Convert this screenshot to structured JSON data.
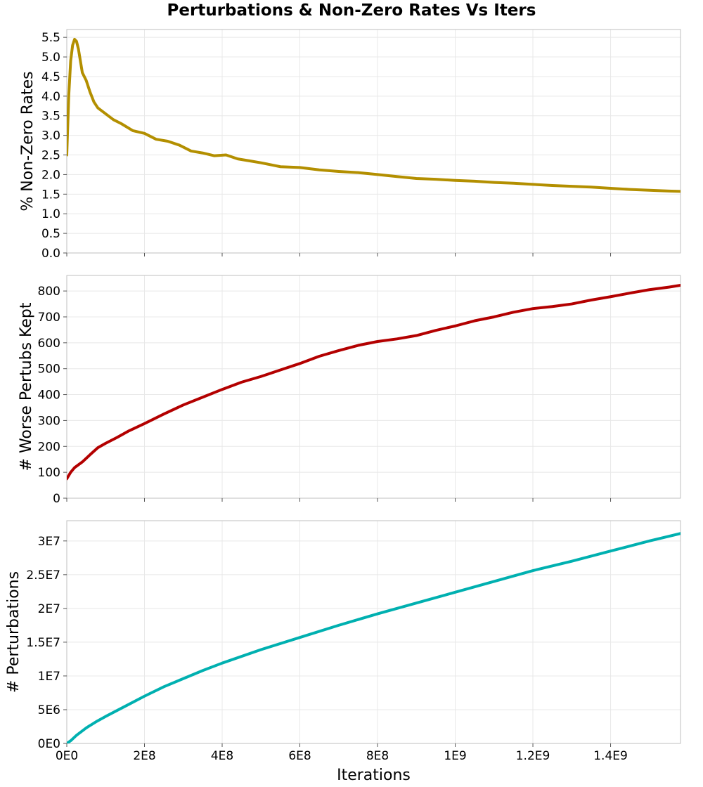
{
  "title": "Perturbations & Non-Zero Rates Vs Iters",
  "chart_data": [
    {
      "type": "line",
      "title": "Perturbations & Non-Zero Rates Vs Iters",
      "xlabel": "",
      "ylabel": "% Non-Zero Rates",
      "xlim": [
        0,
        1580000000
      ],
      "ylim": [
        0,
        5.7
      ],
      "yticks": [
        0,
        0.5,
        1,
        1.5,
        2,
        2.5,
        3,
        3.5,
        4,
        4.5,
        5,
        5.5
      ],
      "ytick_labels": [
        "0.0",
        "0.5",
        "1.0",
        "1.5",
        "2.0",
        "2.5",
        "3.0",
        "3.5",
        "4.0",
        "4.5",
        "5.0",
        "5.5"
      ],
      "grid": true,
      "series": [
        {
          "color": "#b38f00",
          "x": [
            0,
            5000000,
            10000000,
            15000000,
            20000000,
            25000000,
            30000000,
            35000000,
            40000000,
            50000000,
            60000000,
            70000000,
            80000000,
            100000000,
            120000000,
            140000000,
            170000000,
            200000000,
            230000000,
            260000000,
            290000000,
            320000000,
            350000000,
            380000000,
            410000000,
            440000000,
            470000000,
            500000000,
            550000000,
            600000000,
            650000000,
            700000000,
            750000000,
            800000000,
            850000000,
            900000000,
            950000000,
            1000000000,
            1050000000,
            1100000000,
            1150000000,
            1200000000,
            1250000000,
            1300000000,
            1350000000,
            1400000000,
            1450000000,
            1500000000,
            1550000000,
            1580000000
          ],
          "y": [
            2.5,
            4.0,
            4.9,
            5.3,
            5.45,
            5.4,
            5.2,
            4.9,
            4.6,
            4.4,
            4.1,
            3.85,
            3.7,
            3.55,
            3.4,
            3.3,
            3.12,
            3.05,
            2.9,
            2.85,
            2.75,
            2.6,
            2.55,
            2.48,
            2.5,
            2.4,
            2.35,
            2.3,
            2.2,
            2.18,
            2.12,
            2.08,
            2.05,
            2.0,
            1.95,
            1.9,
            1.88,
            1.85,
            1.83,
            1.8,
            1.78,
            1.75,
            1.72,
            1.7,
            1.68,
            1.65,
            1.62,
            1.6,
            1.58,
            1.57
          ]
        }
      ]
    },
    {
      "type": "line",
      "xlabel": "",
      "ylabel": "# Worse Pertubs Kept",
      "xlim": [
        0,
        1580000000
      ],
      "ylim": [
        0,
        860
      ],
      "yticks": [
        0,
        100,
        200,
        300,
        400,
        500,
        600,
        700,
        800
      ],
      "ytick_labels": [
        "0",
        "100",
        "200",
        "300",
        "400",
        "500",
        "600",
        "700",
        "800"
      ],
      "grid": true,
      "series": [
        {
          "color": "#b30000",
          "x": [
            0,
            10000000,
            20000000,
            40000000,
            60000000,
            80000000,
            100000000,
            130000000,
            160000000,
            200000000,
            250000000,
            300000000,
            350000000,
            400000000,
            450000000,
            500000000,
            550000000,
            600000000,
            650000000,
            700000000,
            750000000,
            800000000,
            850000000,
            900000000,
            950000000,
            1000000000,
            1050000000,
            1100000000,
            1150000000,
            1200000000,
            1250000000,
            1300000000,
            1350000000,
            1400000000,
            1450000000,
            1500000000,
            1550000000,
            1580000000
          ],
          "y": [
            75,
            100,
            118,
            140,
            168,
            195,
            212,
            235,
            260,
            288,
            325,
            360,
            390,
            420,
            448,
            470,
            495,
            520,
            548,
            570,
            590,
            605,
            615,
            628,
            648,
            665,
            685,
            700,
            718,
            732,
            740,
            750,
            765,
            778,
            792,
            805,
            815,
            822
          ]
        }
      ]
    },
    {
      "type": "line",
      "xlabel": "Iterations",
      "ylabel": "# Perturbations",
      "xlim": [
        0,
        1580000000
      ],
      "ylim": [
        0,
        33000000
      ],
      "xticks": [
        0,
        200000000,
        400000000,
        600000000,
        800000000,
        1000000000,
        1200000000,
        1400000000
      ],
      "xtick_labels": [
        "0E0",
        "2E8",
        "4E8",
        "6E8",
        "8E8",
        "1E9",
        "1.2E9",
        "1.4E9"
      ],
      "yticks": [
        0,
        5000000,
        10000000,
        15000000,
        20000000,
        25000000,
        30000000
      ],
      "ytick_labels": [
        "0E0",
        "5E6",
        "1E7",
        "1.5E7",
        "2E7",
        "2.5E7",
        "3E7"
      ],
      "grid": true,
      "series": [
        {
          "color": "#00b0b0",
          "x": [
            0,
            10000000,
            25000000,
            50000000,
            75000000,
            100000000,
            150000000,
            200000000,
            250000000,
            300000000,
            350000000,
            400000000,
            500000000,
            600000000,
            700000000,
            800000000,
            900000000,
            1000000000,
            1100000000,
            1200000000,
            1300000000,
            1400000000,
            1500000000,
            1580000000
          ],
          "y": [
            0,
            400000,
            1200000,
            2300000,
            3200000,
            4000000,
            5500000,
            7000000,
            8400000,
            9600000,
            10800000,
            11900000,
            13900000,
            15700000,
            17500000,
            19200000,
            20800000,
            22400000,
            24000000,
            25600000,
            27000000,
            28500000,
            30000000,
            31100000
          ]
        }
      ]
    }
  ]
}
